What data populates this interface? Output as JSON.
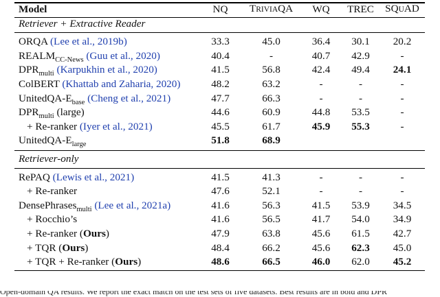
{
  "header": {
    "model": "Model",
    "nq": "NQ",
    "triviaqa": [
      "T",
      "RIVIA",
      "QA"
    ],
    "wq": "WQ",
    "trec": "TREC",
    "squad": [
      "SQ",
      "U",
      "AD"
    ]
  },
  "sections": [
    {
      "title": "Retriever + Extractive Reader",
      "rows": [
        {
          "name": "ORQA",
          "sub": "",
          "suffix": "",
          "cite": "(Lee et al., 2019b)",
          "values": [
            "33.3",
            "45.0",
            "36.4",
            "30.1",
            "20.2"
          ],
          "bold": []
        },
        {
          "name": "REALM",
          "sub": "CC-News",
          "suffix": "",
          "cite": "(Guu et al., 2020)",
          "values": [
            "40.4",
            "-",
            "40.7",
            "42.9",
            "-"
          ],
          "bold": []
        },
        {
          "name": "DPR",
          "sub": "multi",
          "suffix": "",
          "cite": "(Karpukhin et al., 2020)",
          "values": [
            "41.5",
            "56.8",
            "42.4",
            "49.4",
            "24.1"
          ],
          "bold": [
            4
          ]
        },
        {
          "name": "ColBERT",
          "sub": "",
          "suffix": "",
          "cite": "(Khattab and Zaharia, 2020)",
          "values": [
            "48.2",
            "63.2",
            "-",
            "-",
            "-"
          ],
          "bold": []
        },
        {
          "name": "UnitedQA-E",
          "sub": "base",
          "suffix": "",
          "cite": "(Cheng et al., 2021)",
          "values": [
            "47.7",
            "66.3",
            "-",
            "-",
            "-"
          ],
          "bold": []
        },
        {
          "name": "DPR",
          "sub": "multi",
          "suffix": " (large)",
          "cite": "",
          "values": [
            "44.6",
            "60.9",
            "44.8",
            "53.5",
            "-"
          ],
          "bold": []
        },
        {
          "name": "+ Re-ranker",
          "sub": "",
          "suffix": "",
          "cite": "(Iyer et al., 2021)",
          "indent": true,
          "values": [
            "45.5",
            "61.7",
            "45.9",
            "55.3",
            "-"
          ],
          "bold": [
            2,
            3
          ]
        },
        {
          "name": "UnitedQA-E",
          "sub": "large",
          "suffix": "",
          "cite": "",
          "values": [
            "51.8",
            "68.9",
            "",
            "",
            ""
          ],
          "bold": [
            0,
            1
          ]
        }
      ]
    },
    {
      "title": "Retriever-only",
      "rows": [
        {
          "name": "RePAQ",
          "sub": "",
          "suffix": "",
          "cite": "(Lewis et al., 2021)",
          "values": [
            "41.5",
            "41.3",
            "-",
            "-",
            "-"
          ],
          "bold": []
        },
        {
          "name": "+ Re-ranker",
          "sub": "",
          "suffix": "",
          "cite": "",
          "indent": true,
          "values": [
            "47.6",
            "52.1",
            "-",
            "-",
            "-"
          ],
          "bold": []
        },
        {
          "name": "DensePhrases",
          "sub": "multi",
          "suffix": "",
          "cite": "(Lee et al., 2021a)",
          "values": [
            "41.6",
            "56.3",
            "41.5",
            "53.9",
            "34.5"
          ],
          "bold": []
        },
        {
          "name": "+ Rocchio’s",
          "sub": "",
          "suffix": "",
          "cite": "",
          "indent": true,
          "values": [
            "41.6",
            "56.5",
            "41.7",
            "54.0",
            "34.9"
          ],
          "bold": []
        },
        {
          "name": "+ Re-ranker",
          "sub": "",
          "suffix": "",
          "cite": "",
          "ours": "Ours",
          "indent": true,
          "values": [
            "47.9",
            "63.8",
            "45.6",
            "61.5",
            "42.7"
          ],
          "bold": []
        },
        {
          "name": "+ TQR",
          "sub": "",
          "suffix": "",
          "cite": "",
          "ours": "Ours",
          "indent": true,
          "values": [
            "48.4",
            "66.2",
            "45.6",
            "62.3",
            "45.0"
          ],
          "bold": [
            3
          ]
        },
        {
          "name": "+ TQR + Re-ranker",
          "sub": "",
          "suffix": "",
          "cite": "",
          "ours": "Ours",
          "indent": true,
          "values": [
            "48.6",
            "66.5",
            "46.0",
            "62.0",
            "45.2"
          ],
          "bold": [
            0,
            1,
            2,
            4
          ]
        }
      ]
    }
  ],
  "caption": "Open-domain QA results. We report the exact match on the test sets of five datasets. Best results are in bold and DPR"
}
